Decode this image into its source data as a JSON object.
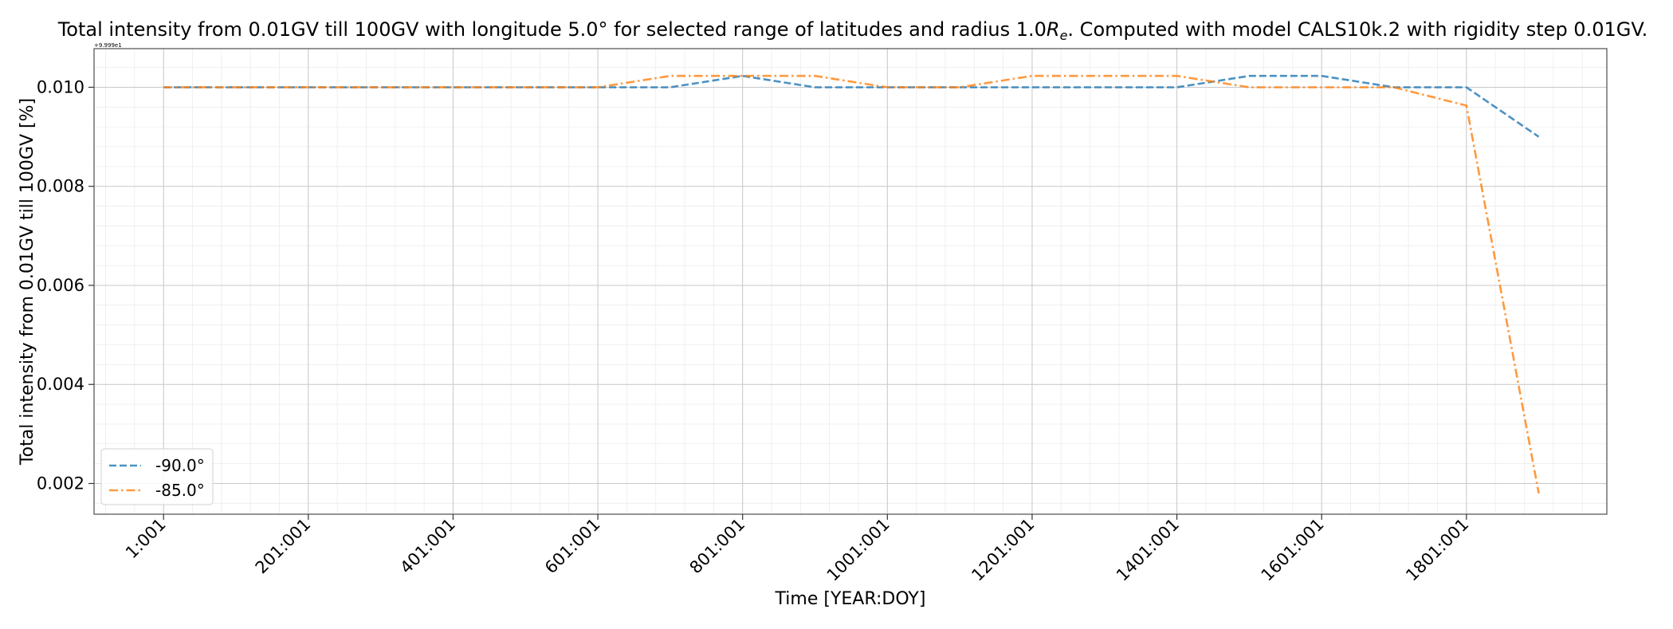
{
  "chart_data": {
    "type": "line",
    "title_parts": [
      "Total intensity from 0.01GV till 100GV with longitude 5.0° for selected range of latitudes and radius 1.0",
      "R",
      "e",
      ". Computed with model CALS10k.2 with rigidity step 0.01GV."
    ],
    "xlabel": "Time [YEAR:DOY]",
    "ylabel": "Total intensity from 0.01GV till 100GV [%]",
    "offset_text": "+9.999e1",
    "x_tick_values": [
      1,
      201,
      401,
      601,
      801,
      1001,
      1201,
      1401,
      1601,
      1801
    ],
    "x_tick_labels": [
      "1:001",
      "201:001",
      "401:001",
      "601:001",
      "801:001",
      "1001:001",
      "1201:001",
      "1401:001",
      "1601:001",
      "1801:001"
    ],
    "y_tick_values": [
      0.002,
      0.004,
      0.006,
      0.008,
      0.01
    ],
    "y_tick_labels": [
      "0.002",
      "0.004",
      "0.006",
      "0.008",
      "0.010"
    ],
    "xlim": [
      -95,
      1995
    ],
    "ylim": [
      0.00138,
      0.01078
    ],
    "x": [
      1,
      101,
      201,
      301,
      401,
      501,
      601,
      701,
      801,
      901,
      1001,
      1101,
      1201,
      1301,
      1401,
      1501,
      1601,
      1701,
      1801,
      1901
    ],
    "series": [
      {
        "name": "-90.0°",
        "color": "#1f77b4",
        "dash": "dashed",
        "values": [
          0.01,
          0.01,
          0.01,
          0.01,
          0.01,
          0.01,
          0.01,
          0.01,
          0.01023,
          0.01,
          0.01,
          0.01,
          0.01,
          0.01,
          0.01,
          0.01023,
          0.01023,
          0.01,
          0.01,
          0.009
        ]
      },
      {
        "name": "-85.0°",
        "color": "#ff7f0e",
        "dash": "dashdot",
        "values": [
          0.01,
          0.01,
          0.01,
          0.01,
          0.01,
          0.01,
          0.01,
          0.01023,
          0.01023,
          0.01023,
          0.01,
          0.01,
          0.01023,
          0.01023,
          0.01023,
          0.01,
          0.01,
          0.01,
          0.00963,
          0.0018
        ]
      }
    ],
    "grid": true,
    "legend_position": "lower-left"
  }
}
